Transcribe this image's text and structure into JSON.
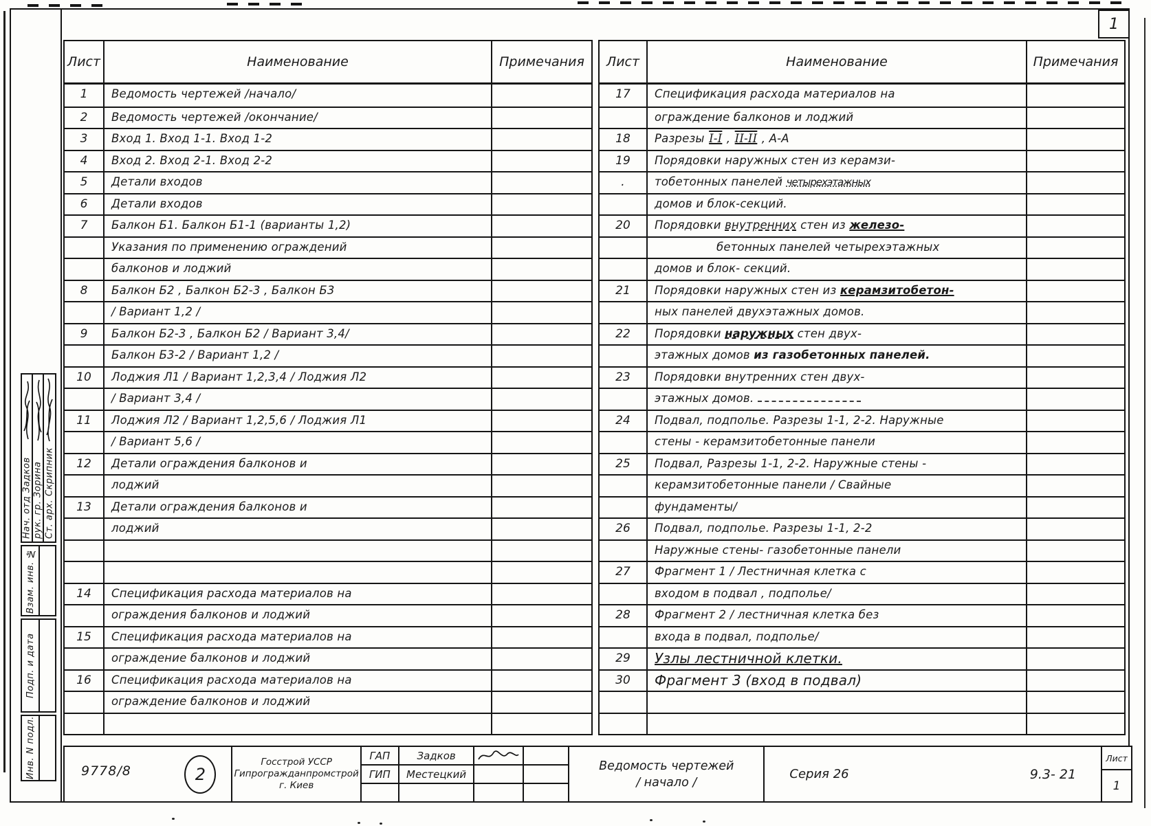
{
  "page": {
    "corner_number": "1"
  },
  "tables": {
    "headers": {
      "sheet": "Лист",
      "name": "Наименование",
      "notes": "Примечания"
    },
    "left": {
      "rows": [
        {
          "num": "1",
          "segs": [
            {
              "t": "Ведомость чертежей /начало/"
            }
          ]
        },
        {
          "num": "2",
          "segs": [
            {
              "t": "Ведомость чертежей /окончание/"
            }
          ]
        },
        {
          "num": "3",
          "segs": [
            {
              "t": "Вход 1. Вход 1-1. Вход 1-2"
            }
          ]
        },
        {
          "num": "4",
          "segs": [
            {
              "t": "Вход 2. Вход 2-1. Вход 2-2"
            }
          ]
        },
        {
          "num": "5",
          "segs": [
            {
              "t": "Детали входов"
            }
          ]
        },
        {
          "num": "6",
          "segs": [
            {
              "t": "Детали входов"
            }
          ]
        },
        {
          "num": "7",
          "segs": [
            {
              "t": "Балкон Б1. Балкон Б1-1 (варианты 1,2)"
            }
          ]
        },
        {
          "segs": [
            {
              "t": "Указания по применению ограждений"
            }
          ]
        },
        {
          "segs": [
            {
              "t": "балконов и лоджий"
            }
          ]
        },
        {
          "num": "8",
          "segs": [
            {
              "t": "Балкон Б2 , Балкон Б2-3 , Балкон Б3"
            }
          ]
        },
        {
          "segs": [
            {
              "t": "/ Вариант 1,2 /"
            }
          ]
        },
        {
          "num": "9",
          "segs": [
            {
              "t": "Балкон Б2-3 , Балкон Б2 / Вариант 3,4/"
            }
          ]
        },
        {
          "segs": [
            {
              "t": "Балкон Б3-2 / Вариант 1,2 /"
            }
          ]
        },
        {
          "num": "10",
          "segs": [
            {
              "t": "Лоджия Л1 / Вариант 1,2,3,4 / Лоджия Л2"
            }
          ]
        },
        {
          "segs": [
            {
              "t": "/ Вариант 3,4 /"
            }
          ]
        },
        {
          "num": "11",
          "segs": [
            {
              "t": "Лоджия Л2 / Вариант 1,2,5,6 / Лоджия Л1"
            }
          ]
        },
        {
          "segs": [
            {
              "t": "/ Вариант 5,6 /"
            }
          ]
        },
        {
          "num": "12",
          "segs": [
            {
              "t": "Детали ограждения балконов и"
            }
          ]
        },
        {
          "segs": [
            {
              "t": "лоджий"
            }
          ]
        },
        {
          "num": "13",
          "segs": [
            {
              "t": "Детали ограждения балконов и"
            }
          ]
        },
        {
          "segs": [
            {
              "t": "лоджий"
            }
          ]
        },
        {
          "segs": []
        },
        {
          "segs": []
        },
        {
          "num": "14",
          "segs": [
            {
              "t": "Спецификация расхода материалов на"
            }
          ]
        },
        {
          "segs": [
            {
              "t": "ограждения балконов и лоджий"
            }
          ]
        },
        {
          "num": "15",
          "segs": [
            {
              "t": "Спецификация расхода материалов на"
            }
          ]
        },
        {
          "segs": [
            {
              "t": "ограждение балконов и лоджий"
            }
          ]
        },
        {
          "num": "16",
          "segs": [
            {
              "t": "Спецификация расхода материалов на"
            }
          ]
        },
        {
          "segs": [
            {
              "t": "ограждение балконов и лоджий"
            }
          ]
        },
        {
          "segs": []
        }
      ]
    },
    "right": {
      "rows": [
        {
          "num": "17",
          "segs": [
            {
              "t": "Спецификация расхода материалов на"
            }
          ]
        },
        {
          "segs": [
            {
              "t": "ограждение балконов и лоджий"
            }
          ]
        },
        {
          "num": "18",
          "segs": [
            {
              "t": "Разрезы "
            },
            {
              "t": "I-I",
              "s": "r"
            },
            {
              "t": " , "
            },
            {
              "t": "II-II",
              "s": "r"
            },
            {
              "t": " , А-А"
            }
          ]
        },
        {
          "num": "19",
          "segs": [
            {
              "t": "Порядовки наружных стен из керамзи-"
            }
          ]
        },
        {
          "num": ".",
          "segs": [
            {
              "t": "тобетонных панелей "
            },
            {
              "t": "четырехэтажных",
              "s": "ins"
            }
          ]
        },
        {
          "segs": [
            {
              "t": "домов и блок-секций."
            }
          ]
        },
        {
          "num": "20",
          "segs": [
            {
              "t": "Порядовки "
            },
            {
              "t": "внутренних",
              "s": "du"
            },
            {
              "t": " стен из "
            },
            {
              "t": "железо-",
              "s": "b u"
            }
          ]
        },
        {
          "ind": 100,
          "segs": [
            {
              "t": "бетонных панелей четырехэтажных"
            }
          ]
        },
        {
          "segs": [
            {
              "t": "домов и блок- секций."
            }
          ]
        },
        {
          "num": "21",
          "segs": [
            {
              "t": "Порядовки наружных стен из "
            },
            {
              "t": "керамзитобетон-",
              "s": "b u"
            }
          ]
        },
        {
          "segs": [
            {
              "t": "ных панелей двухэтажных домов."
            }
          ]
        },
        {
          "num": "22",
          "segs": [
            {
              "t": "Порядовки "
            },
            {
              "t": "наружных",
              "s": "b du"
            },
            {
              "t": " стен двух-"
            }
          ]
        },
        {
          "segs": [
            {
              "t": "этажных домов "
            },
            {
              "t": "из газобетонных панелей.",
              "s": "b"
            }
          ]
        },
        {
          "num": "23",
          "segs": [
            {
              "t": "Порядовки внутренних стен двух-"
            }
          ]
        },
        {
          "segs": [
            {
              "t": "этажных домов. "
            },
            {
              "t": "",
              "s": "dash"
            }
          ]
        },
        {
          "num": "24",
          "segs": [
            {
              "t": "Подвал, подполье. Разрезы 1-1, 2-2. Наружные"
            }
          ]
        },
        {
          "segs": [
            {
              "t": "стены - керамзитобетонные панели"
            }
          ]
        },
        {
          "num": "25",
          "segs": [
            {
              "t": "Подвал, Разрезы 1-1, 2-2. Наружные стены -"
            }
          ]
        },
        {
          "segs": [
            {
              "t": "керамзитобетонные панели / Свайные"
            }
          ]
        },
        {
          "segs": [
            {
              "t": "фундаменты/"
            }
          ]
        },
        {
          "num": "26",
          "segs": [
            {
              "t": "Подвал, подполье. Разрезы 1-1, 2-2"
            }
          ]
        },
        {
          "segs": [
            {
              "t": "Наружные стены- газобетонные панели"
            }
          ]
        },
        {
          "num": "27",
          "segs": [
            {
              "t": "Фрагмент 1 / Лестничная клетка с"
            }
          ]
        },
        {
          "segs": [
            {
              "t": "входом в подвал , подполье/"
            }
          ]
        },
        {
          "num": "28",
          "segs": [
            {
              "t": "Фрагмент 2 / лестничная клетка без"
            }
          ]
        },
        {
          "segs": [
            {
              "t": "входа в подвал, подполье/"
            }
          ]
        },
        {
          "num": "29",
          "segs": [
            {
              "t": "Узлы лестничной клетки.",
              "s": "u big"
            }
          ]
        },
        {
          "num": "30",
          "segs": [
            {
              "t": "Фрагмент 3 (вход в подвал)",
              "s": "big"
            }
          ]
        },
        {
          "segs": []
        },
        {
          "segs": []
        }
      ]
    }
  },
  "sidebar": {
    "signers": [
      {
        "label": "Нач. отд",
        "name": "Задков"
      },
      {
        "label": "рук. гр.",
        "name": "Зорина"
      },
      {
        "label": "Ст. арх.",
        "name": "Скрипник"
      }
    ],
    "boxes": [
      "Взам. инв. №",
      "Подп. и дата",
      "Инв. N подл."
    ]
  },
  "titleblock": {
    "doc_number": "9778/8",
    "stamp_number": "2",
    "org_line1": "Госстрой УССР",
    "org_line2": "Гипрогражданпромстрой",
    "org_line3": "г. Киев",
    "roles": [
      {
        "role": "ГАП",
        "name": "Задков"
      },
      {
        "role": "ГИП",
        "name": "Местецкий"
      }
    ],
    "title_line1": "Ведомость чертежей",
    "title_line2": "/ начало /",
    "series": "Серия 26",
    "code": "9.3- 21",
    "sheet_label": "Лист",
    "sheet_number": "1"
  }
}
